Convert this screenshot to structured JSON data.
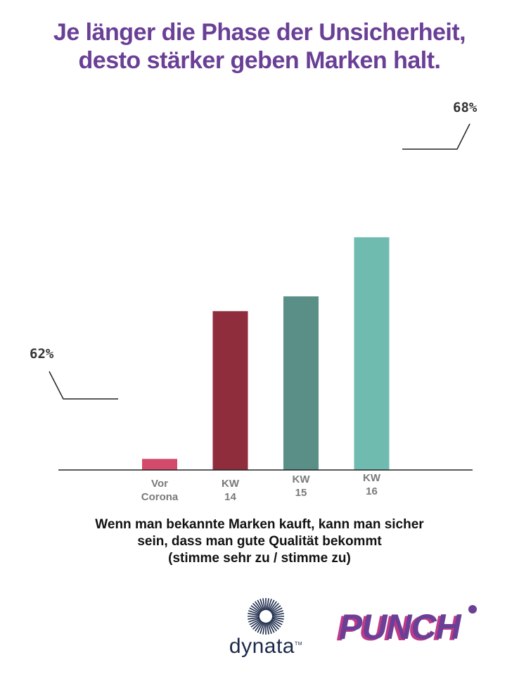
{
  "title_lines": [
    "Je länger die Phase der Unsicherheit,",
    "desto stärker geben Marken halt."
  ],
  "chart_data": {
    "type": "bar",
    "categories": [
      [
        "Vor",
        "Corona"
      ],
      [
        "KW",
        "14"
      ],
      [
        "KW",
        "15"
      ],
      [
        "KW",
        "16"
      ]
    ],
    "values": [
      62,
      66,
      66.4,
      68
    ],
    "colors": [
      "#d44a6a",
      "#8f2d3c",
      "#5a8f88",
      "#6fbbb0"
    ],
    "annotations": {
      "low": "62%",
      "high": "68%"
    }
  },
  "caption_lines": [
    "Wenn man bekannte Marken kauft, kann man sicher",
    "sein, dass man gute Qualität bekommt",
    "(stimme sehr zu / stimme zu)"
  ],
  "logos": {
    "dynata": "dynata",
    "dynata_tm": "TM",
    "punch": "PUNCH"
  }
}
